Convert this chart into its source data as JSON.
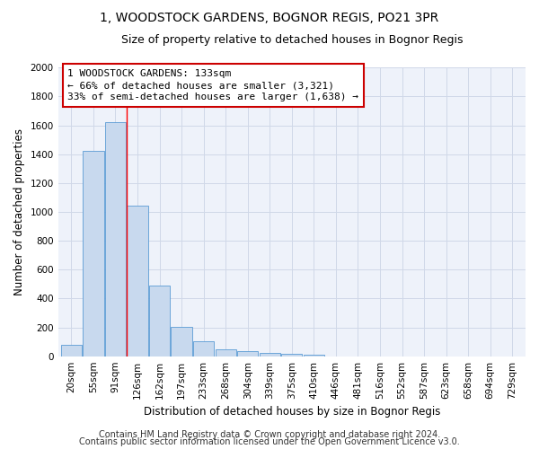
{
  "title": "1, WOODSTOCK GARDENS, BOGNOR REGIS, PO21 3PR",
  "subtitle": "Size of property relative to detached houses in Bognor Regis",
  "xlabel": "Distribution of detached houses by size in Bognor Regis",
  "ylabel": "Number of detached properties",
  "bar_color": "#c8d9ee",
  "bar_edge_color": "#5b9bd5",
  "categories": [
    "20sqm",
    "55sqm",
    "91sqm",
    "126sqm",
    "162sqm",
    "197sqm",
    "233sqm",
    "268sqm",
    "304sqm",
    "339sqm",
    "375sqm",
    "410sqm",
    "446sqm",
    "481sqm",
    "516sqm",
    "552sqm",
    "587sqm",
    "623sqm",
    "658sqm",
    "694sqm",
    "729sqm"
  ],
  "values": [
    80,
    1420,
    1620,
    1045,
    490,
    205,
    105,
    47,
    35,
    22,
    18,
    13,
    0,
    0,
    0,
    0,
    0,
    0,
    0,
    0,
    0
  ],
  "ylim": [
    0,
    2000
  ],
  "yticks": [
    0,
    200,
    400,
    600,
    800,
    1000,
    1200,
    1400,
    1600,
    1800,
    2000
  ],
  "red_line_x": 2.5,
  "annotation_line1": "1 WOODSTOCK GARDENS: 133sqm",
  "annotation_line2": "← 66% of detached houses are smaller (3,321)",
  "annotation_line3": "33% of semi-detached houses are larger (1,638) →",
  "annotation_box_color": "#ffffff",
  "annotation_box_edge": "#cc0000",
  "footer1": "Contains HM Land Registry data © Crown copyright and database right 2024.",
  "footer2": "Contains public sector information licensed under the Open Government Licence v3.0.",
  "background_color": "#eef2fa",
  "grid_color": "#d0d8e8",
  "title_fontsize": 10,
  "subtitle_fontsize": 9,
  "axis_label_fontsize": 8.5,
  "tick_fontsize": 7.5,
  "annotation_fontsize": 8,
  "footer_fontsize": 7
}
